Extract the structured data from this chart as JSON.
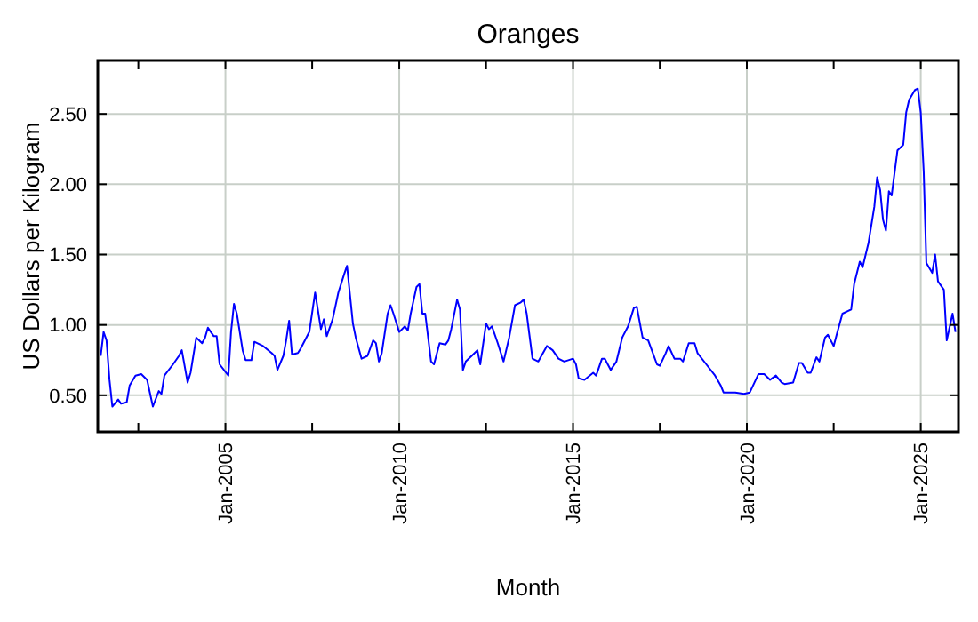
{
  "chart_data": {
    "type": "line",
    "title": "Oranges",
    "xlabel": "Month",
    "ylabel": "US Dollars per Kilogram",
    "x": [
      "2001-06",
      "2001-07",
      "2001-08",
      "2001-09",
      "2001-10",
      "2001-12",
      "2002-01",
      "2002-03",
      "2002-04",
      "2002-06",
      "2002-08",
      "2002-10",
      "2002-12",
      "2003-02",
      "2003-03",
      "2003-04",
      "2003-07",
      "2003-09",
      "2003-10",
      "2003-12",
      "2004-01",
      "2004-03",
      "2004-05",
      "2004-06",
      "2004-07",
      "2004-09",
      "2004-10",
      "2004-11",
      "2005-02",
      "2005-03",
      "2005-04",
      "2005-05",
      "2005-07",
      "2005-08",
      "2005-10",
      "2005-11",
      "2006-02",
      "2006-05",
      "2006-06",
      "2006-07",
      "2006-09",
      "2006-10",
      "2006-11",
      "2006-12",
      "2007-02",
      "2007-03",
      "2007-06",
      "2007-08",
      "2007-10",
      "2007-11",
      "2007-12",
      "2008-02",
      "2008-04",
      "2008-06",
      "2008-07",
      "2008-09",
      "2008-10",
      "2008-12",
      "2009-02",
      "2009-04",
      "2009-05",
      "2009-06",
      "2009-07",
      "2009-09",
      "2009-10",
      "2009-11",
      "2010-01",
      "2010-03",
      "2010-04",
      "2010-05",
      "2010-07",
      "2010-08",
      "2010-09",
      "2010-10",
      "2010-12",
      "2011-01",
      "2011-03",
      "2011-05",
      "2011-06",
      "2011-07",
      "2011-09",
      "2011-10",
      "2011-11",
      "2011-12",
      "2012-02",
      "2012-04",
      "2012-05",
      "2012-07",
      "2012-08",
      "2012-09",
      "2012-11",
      "2013-01",
      "2013-03",
      "2013-05",
      "2013-07",
      "2013-08",
      "2013-09",
      "2013-11",
      "2014-01",
      "2014-04",
      "2014-06",
      "2014-08",
      "2014-10",
      "2015-01",
      "2015-02",
      "2015-03",
      "2015-05",
      "2015-08",
      "2015-09",
      "2015-11",
      "2015-12",
      "2016-02",
      "2016-04",
      "2016-06",
      "2016-08",
      "2016-10",
      "2016-11",
      "2017-01",
      "2017-03",
      "2017-06",
      "2017-07",
      "2017-09",
      "2017-10",
      "2017-12",
      "2018-02",
      "2018-03",
      "2018-05",
      "2018-07",
      "2018-08",
      "2018-11",
      "2019-02",
      "2019-04",
      "2019-05",
      "2019-09",
      "2019-12",
      "2020-02",
      "2020-05",
      "2020-07",
      "2020-09",
      "2020-11",
      "2021-01",
      "2021-02",
      "2021-05",
      "2021-07",
      "2021-08",
      "2021-10",
      "2021-11",
      "2022-01",
      "2022-02",
      "2022-04",
      "2022-05",
      "2022-07",
      "2022-08",
      "2022-10",
      "2022-12",
      "2023-01",
      "2023-02",
      "2023-04",
      "2023-05",
      "2023-07",
      "2023-09",
      "2023-10",
      "2023-11",
      "2023-12",
      "2024-01",
      "2024-02",
      "2024-03",
      "2024-05",
      "2024-07",
      "2024-08",
      "2024-09",
      "2024-11",
      "2024-12",
      "2025-01",
      "2025-02",
      "2025-03",
      "2025-05",
      "2025-06",
      "2025-07",
      "2025-09",
      "2025-10",
      "2025-12",
      "2026-01"
    ],
    "series": [
      {
        "color": "#0000ff",
        "values": [
          0.78,
          0.95,
          0.89,
          0.61,
          0.42,
          0.47,
          0.44,
          0.45,
          0.57,
          0.64,
          0.65,
          0.61,
          0.42,
          0.53,
          0.51,
          0.64,
          0.72,
          0.78,
          0.82,
          0.59,
          0.66,
          0.91,
          0.87,
          0.91,
          0.98,
          0.92,
          0.92,
          0.72,
          0.64,
          0.95,
          1.15,
          1.08,
          0.82,
          0.75,
          0.75,
          0.88,
          0.85,
          0.8,
          0.78,
          0.68,
          0.78,
          0.89,
          1.03,
          0.79,
          0.8,
          0.83,
          0.95,
          1.23,
          0.97,
          1.04,
          0.92,
          1.04,
          1.23,
          1.36,
          1.42,
          1.01,
          0.91,
          0.76,
          0.78,
          0.89,
          0.87,
          0.74,
          0.8,
          1.08,
          1.14,
          1.08,
          0.95,
          0.99,
          0.96,
          1.08,
          1.27,
          1.29,
          1.08,
          1.08,
          0.74,
          0.72,
          0.87,
          0.86,
          0.89,
          0.97,
          1.18,
          1.11,
          0.68,
          0.74,
          0.78,
          0.82,
          0.72,
          1.01,
          0.97,
          0.99,
          0.87,
          0.74,
          0.91,
          1.14,
          1.16,
          1.18,
          1.08,
          0.76,
          0.74,
          0.85,
          0.82,
          0.76,
          0.74,
          0.76,
          0.72,
          0.62,
          0.61,
          0.66,
          0.64,
          0.76,
          0.76,
          0.68,
          0.74,
          0.91,
          0.99,
          1.12,
          1.13,
          0.91,
          0.89,
          0.72,
          0.71,
          0.8,
          0.85,
          0.76,
          0.76,
          0.74,
          0.87,
          0.87,
          0.8,
          0.72,
          0.64,
          0.57,
          0.52,
          0.52,
          0.51,
          0.52,
          0.65,
          0.65,
          0.61,
          0.64,
          0.59,
          0.58,
          0.59,
          0.73,
          0.73,
          0.66,
          0.66,
          0.77,
          0.74,
          0.91,
          0.93,
          0.85,
          0.93,
          1.08,
          1.1,
          1.11,
          1.29,
          1.45,
          1.41,
          1.58,
          1.84,
          2.05,
          1.96,
          1.75,
          1.67,
          1.95,
          1.92,
          2.24,
          2.28,
          2.51,
          2.6,
          2.67,
          2.68,
          2.51,
          2.09,
          1.44,
          1.37,
          1.5,
          1.31,
          1.25,
          0.89,
          1.08,
          0.95
        ]
      }
    ],
    "xlim": [
      "2001-05",
      "2026-02"
    ],
    "xticks": [
      {
        "value": "2002-07",
        "label": null
      },
      {
        "value": "2005-01",
        "label": "Jan-2005"
      },
      {
        "value": "2007-07",
        "label": null
      },
      {
        "value": "2010-01",
        "label": "Jan-2010"
      },
      {
        "value": "2012-07",
        "label": null
      },
      {
        "value": "2015-01",
        "label": "Jan-2015"
      },
      {
        "value": "2017-07",
        "label": null
      },
      {
        "value": "2020-01",
        "label": "Jan-2020"
      },
      {
        "value": "2022-07",
        "label": null
      },
      {
        "value": "2025-01",
        "label": "Jan-2025"
      }
    ],
    "ylim": [
      0.24,
      2.88
    ],
    "yticks": [
      {
        "value": 0.5,
        "label": "0.50"
      },
      {
        "value": 1,
        "label": "1.00"
      },
      {
        "value": 1.5,
        "label": "1.50"
      },
      {
        "value": 2,
        "label": "2.00"
      },
      {
        "value": 2.5,
        "label": "2.50"
      }
    ],
    "grid": true
  }
}
